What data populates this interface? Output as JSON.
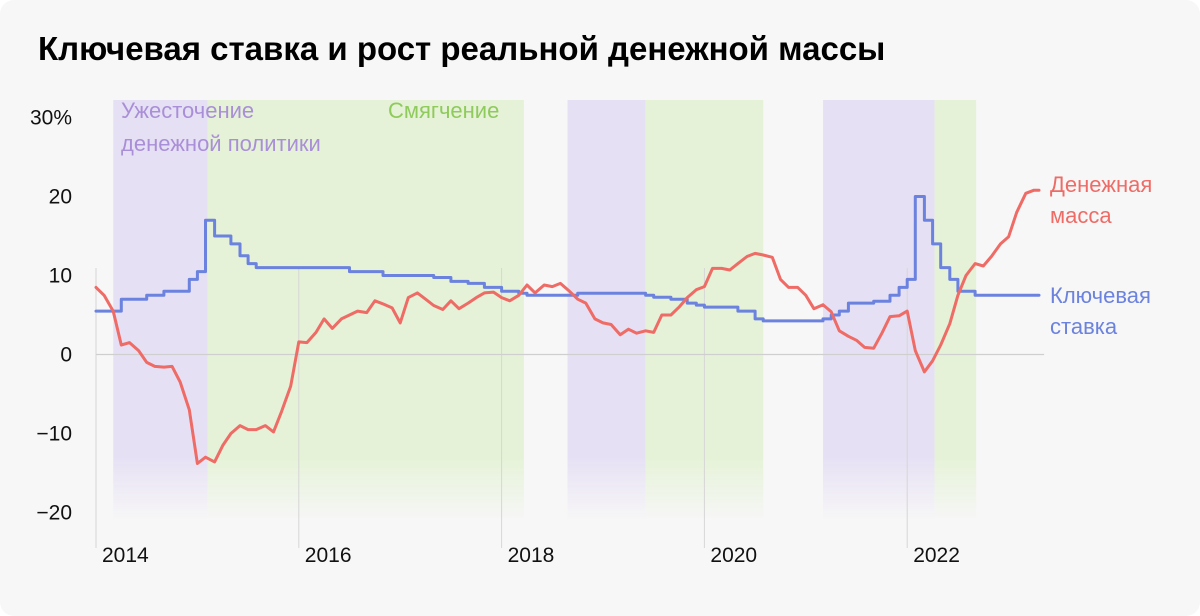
{
  "title": "Ключевая ставка и рост реальной денежной массы",
  "colors": {
    "background": "#f7f7f7",
    "tightening_band": "#e6e0f4",
    "easing_band": "#e5f2d7",
    "tightening_text": "#a98fd7",
    "easing_text": "#8fca5c",
    "money_supply": "#ee6b66",
    "key_rate": "#6b82de",
    "grid": "#d6d6d6",
    "zero_line": "#cfcfcf"
  },
  "chart_data": {
    "type": "line",
    "title": "Ключевая ставка и рост реальной денежной массы",
    "xlabel": "",
    "ylabel": "",
    "x_tick_labels": [
      "2014",
      "2016",
      "2018",
      "2020",
      "2022"
    ],
    "x_ticks": [
      2014,
      2016,
      2018,
      2020,
      2022
    ],
    "y_ticks": [
      30,
      20,
      10,
      0,
      -10,
      -20
    ],
    "y_tick_labels": [
      "30%",
      "20",
      "10",
      "0",
      "−10",
      "−20"
    ],
    "ylim": [
      -20,
      30
    ],
    "xlim": [
      2014,
      2023.35
    ],
    "regions": [
      {
        "type": "tightening",
        "start": 2014.17,
        "end": 2015.1
      },
      {
        "type": "easing",
        "start": 2015.1,
        "end": 2018.22
      },
      {
        "type": "tightening",
        "start": 2018.65,
        "end": 2019.42
      },
      {
        "type": "easing",
        "start": 2019.42,
        "end": 2020.58
      },
      {
        "type": "tightening",
        "start": 2021.17,
        "end": 2022.27
      },
      {
        "type": "easing",
        "start": 2022.27,
        "end": 2022.68
      }
    ],
    "region_labels": [
      {
        "type": "tightening",
        "lines": [
          "Ужесточение",
          "денежной политики"
        ]
      },
      {
        "type": "easing",
        "lines": [
          "Смягчение"
        ]
      }
    ],
    "series": [
      {
        "name": "Денежная масса",
        "label_lines": [
          "Денежная",
          "масса"
        ],
        "type": "line",
        "x": [
          2014.0,
          2014.08,
          2014.17,
          2014.25,
          2014.33,
          2014.42,
          2014.5,
          2014.58,
          2014.67,
          2014.75,
          2014.83,
          2014.92,
          2015.0,
          2015.08,
          2015.17,
          2015.25,
          2015.33,
          2015.42,
          2015.5,
          2015.58,
          2015.67,
          2015.75,
          2015.83,
          2015.92,
          2016.0,
          2016.08,
          2016.17,
          2016.25,
          2016.33,
          2016.42,
          2016.5,
          2016.58,
          2016.67,
          2016.75,
          2016.83,
          2016.92,
          2017.0,
          2017.08,
          2017.17,
          2017.25,
          2017.33,
          2017.42,
          2017.5,
          2017.58,
          2017.67,
          2017.75,
          2017.83,
          2017.92,
          2018.0,
          2018.08,
          2018.17,
          2018.25,
          2018.33,
          2018.42,
          2018.5,
          2018.58,
          2018.67,
          2018.75,
          2018.83,
          2018.92,
          2019.0,
          2019.08,
          2019.17,
          2019.25,
          2019.33,
          2019.42,
          2019.5,
          2019.58,
          2019.67,
          2019.75,
          2019.83,
          2019.92,
          2020.0,
          2020.08,
          2020.17,
          2020.25,
          2020.33,
          2020.42,
          2020.5,
          2020.58,
          2020.67,
          2020.75,
          2020.83,
          2020.92,
          2021.0,
          2021.08,
          2021.17,
          2021.25,
          2021.33,
          2021.42,
          2021.5,
          2021.58,
          2021.67,
          2021.75,
          2021.83,
          2021.92,
          2022.0,
          2022.08,
          2022.17,
          2022.25,
          2022.33,
          2022.42,
          2022.5,
          2022.58,
          2022.67,
          2022.75,
          2022.83,
          2022.92,
          2023.0,
          2023.08,
          2023.17,
          2023.25,
          2023.3
        ],
        "values": [
          8.5,
          7.5,
          5.5,
          1.2,
          1.5,
          0.5,
          -1.0,
          -1.5,
          -1.6,
          -1.5,
          -3.5,
          -7.0,
          -13.8,
          -13.0,
          -13.6,
          -11.5,
          -10.0,
          -9.0,
          -9.5,
          -9.5,
          -9.0,
          -9.8,
          -7.2,
          -4.0,
          1.6,
          1.5,
          2.8,
          4.5,
          3.3,
          4.5,
          5.0,
          5.5,
          5.3,
          6.8,
          6.4,
          5.9,
          4.0,
          7.2,
          7.8,
          7.0,
          6.2,
          5.7,
          6.8,
          5.8,
          6.5,
          7.2,
          7.8,
          7.9,
          7.2,
          6.8,
          7.5,
          8.8,
          7.8,
          8.8,
          8.6,
          9.0,
          8.0,
          7.0,
          6.5,
          4.5,
          4.0,
          3.8,
          2.5,
          3.2,
          2.7,
          3.0,
          2.8,
          5.0,
          5.0,
          6.0,
          7.2,
          8.2,
          8.6,
          10.9,
          10.9,
          10.7,
          11.5,
          12.4,
          12.8,
          12.6,
          12.3,
          9.5,
          8.5,
          8.5,
          7.5,
          5.8,
          6.3,
          5.4,
          3.0,
          2.3,
          1.8,
          0.9,
          0.8,
          2.7,
          4.8,
          4.9,
          5.5,
          0.5,
          -2.2,
          -0.8,
          1.2,
          3.9,
          7.5,
          10.0,
          11.5,
          11.2,
          12.4,
          14.0,
          14.9,
          18.0,
          20.4,
          20.8,
          20.8
        ]
      },
      {
        "name": "Ключевая ставка",
        "label_lines": [
          "Ключевая",
          "ставка"
        ],
        "type": "step",
        "x": [
          2014.0,
          2014.17,
          2014.25,
          2014.33,
          2014.5,
          2014.58,
          2014.67,
          2014.83,
          2014.92,
          2015.0,
          2015.08,
          2015.17,
          2015.33,
          2015.42,
          2015.5,
          2015.58,
          2015.67,
          2015.75,
          2016.0,
          2016.17,
          2016.25,
          2016.5,
          2016.67,
          2016.83,
          2017.0,
          2017.17,
          2017.33,
          2017.5,
          2017.67,
          2017.83,
          2018.0,
          2018.17,
          2018.25,
          2018.67,
          2018.75,
          2018.92,
          2019.0,
          2019.25,
          2019.42,
          2019.5,
          2019.67,
          2019.83,
          2019.92,
          2020.0,
          2020.17,
          2020.33,
          2020.5,
          2020.58,
          2020.75,
          2021.0,
          2021.17,
          2021.25,
          2021.33,
          2021.42,
          2021.58,
          2021.67,
          2021.83,
          2021.92,
          2022.0,
          2022.08,
          2022.17,
          2022.25,
          2022.33,
          2022.42,
          2022.5,
          2022.67,
          2022.83,
          2023.0,
          2023.3
        ],
        "values": [
          5.5,
          5.5,
          7.0,
          7.0,
          7.5,
          7.5,
          8.0,
          8.0,
          9.5,
          10.5,
          17.0,
          15.0,
          14.0,
          12.5,
          11.5,
          11.0,
          11.0,
          11.0,
          11.0,
          11.0,
          11.0,
          10.5,
          10.5,
          10.0,
          10.0,
          10.0,
          9.75,
          9.25,
          9.0,
          8.5,
          8.0,
          7.75,
          7.5,
          7.5,
          7.75,
          7.75,
          7.75,
          7.75,
          7.5,
          7.25,
          7.0,
          6.5,
          6.25,
          6.0,
          6.0,
          5.5,
          4.5,
          4.25,
          4.25,
          4.25,
          4.5,
          5.0,
          5.5,
          6.5,
          6.5,
          6.75,
          7.5,
          8.5,
          9.5,
          20.0,
          17.0,
          14.0,
          11.0,
          9.5,
          8.0,
          7.5,
          7.5,
          7.5,
          7.5
        ]
      }
    ]
  }
}
